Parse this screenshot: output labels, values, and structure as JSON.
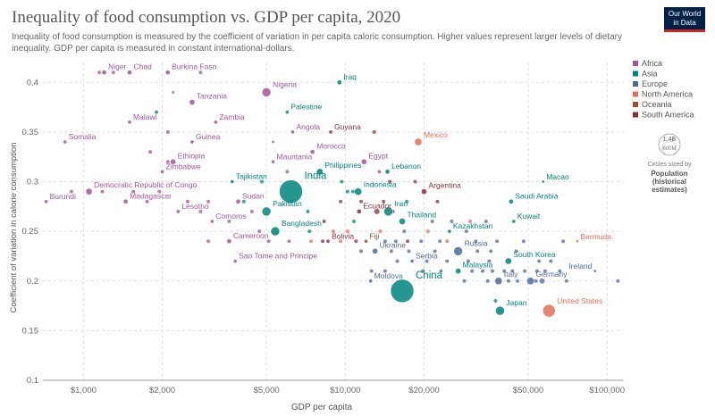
{
  "header": {
    "title": "Inequality of food consumption vs. GDP per capita, 2020",
    "subtitle": "Inequality of food consumption is measured by the coefficient of variation in per capita caloric consumption. Higher values represent larger levels of dietary inequality. GDP per capita is measured in constant international-dollars.",
    "logo_line1": "Our World",
    "logo_line2": "in Data"
  },
  "colors": {
    "Africa": "#a2559c",
    "Asia": "#00847e",
    "Europe": "#4c6a9c",
    "North America": "#e56e5a",
    "Oceania": "#9a5129",
    "South America": "#883039"
  },
  "size_legend": {
    "value_label": "1.4B",
    "value_label2": "600M",
    "note": "Circles sized by",
    "title": "Population",
    "title2": "(historical",
    "title3": "estimates)"
  },
  "chart_data": {
    "type": "scatter",
    "xlabel": "GDP per capita",
    "ylabel": "Coefficient of variation in calorie consumption",
    "xscale": "log",
    "xlim": [
      700,
      115000
    ],
    "ylim": [
      0.1,
      0.42
    ],
    "xticks": [
      1000,
      2000,
      5000,
      10000,
      20000,
      50000,
      100000
    ],
    "xtick_labels": [
      "$1,000",
      "$2,000",
      "$5,000",
      "$10,000",
      "$20,000",
      "$50,000",
      "$100,000"
    ],
    "yticks": [
      0.1,
      0.15,
      0.2,
      0.25,
      0.3,
      0.35,
      0.4
    ],
    "ytick_labels": [
      "0.1",
      "0.15",
      "0.2",
      "0.25",
      "0.3",
      "0.35",
      "0.4"
    ],
    "grid": true,
    "legend_position": "right",
    "legend": [
      "Africa",
      "Asia",
      "Europe",
      "North America",
      "Oceania",
      "South America"
    ],
    "points": [
      {
        "label": "Niger",
        "x": 1200,
        "y": 0.41,
        "region": "Africa",
        "r": 2.5
      },
      {
        "label": "Chad",
        "x": 1500,
        "y": 0.41,
        "region": "Africa",
        "r": 2.5
      },
      {
        "label": "Burkina Faso",
        "x": 2100,
        "y": 0.41,
        "region": "Africa",
        "r": 2.5
      },
      {
        "label": "Nigeria",
        "x": 5000,
        "y": 0.39,
        "region": "Africa",
        "r": 5
      },
      {
        "label": "Iraq",
        "x": 9500,
        "y": 0.4,
        "region": "Asia",
        "r": 2.5
      },
      {
        "label": "Tanzania",
        "x": 2600,
        "y": 0.38,
        "region": "Africa",
        "r": 3
      },
      {
        "label": "Palestine",
        "x": 6000,
        "y": 0.37,
        "region": "Asia",
        "r": 2
      },
      {
        "label": "Malawi",
        "x": 1500,
        "y": 0.36,
        "region": "Africa",
        "r": 2
      },
      {
        "label": "Zambia",
        "x": 3200,
        "y": 0.36,
        "region": "Africa",
        "r": 2
      },
      {
        "label": "Angola",
        "x": 6300,
        "y": 0.35,
        "region": "Africa",
        "r": 2
      },
      {
        "label": "Guyana",
        "x": 8800,
        "y": 0.35,
        "region": "South America",
        "r": 2
      },
      {
        "label": "Somalia",
        "x": 850,
        "y": 0.34,
        "region": "Africa",
        "r": 2
      },
      {
        "label": "Guinea",
        "x": 2600,
        "y": 0.34,
        "region": "Africa",
        "r": 2
      },
      {
        "label": "Mexico",
        "x": 19000,
        "y": 0.34,
        "region": "North America",
        "r": 4
      },
      {
        "label": "Morocco",
        "x": 7500,
        "y": 0.33,
        "region": "Africa",
        "r": 2.5
      },
      {
        "label": "Ethiopia",
        "x": 2200,
        "y": 0.32,
        "region": "Africa",
        "r": 3
      },
      {
        "label": "Mauritania",
        "x": 5300,
        "y": 0.32,
        "region": "Africa",
        "r": 2
      },
      {
        "label": "Egypt",
        "x": 11800,
        "y": 0.32,
        "region": "Africa",
        "r": 3
      },
      {
        "label": "Zimbabwe",
        "x": 2000,
        "y": 0.31,
        "region": "Africa",
        "r": 2
      },
      {
        "label": "Philippines",
        "x": 8000,
        "y": 0.31,
        "region": "Asia",
        "r": 3.5
      },
      {
        "label": "Lebanon",
        "x": 14500,
        "y": 0.31,
        "region": "Asia",
        "r": 2.5
      },
      {
        "label": "Tajikistan",
        "x": 3700,
        "y": 0.3,
        "region": "Asia",
        "r": 2
      },
      {
        "label": "India",
        "x": 6200,
        "y": 0.29,
        "region": "Asia",
        "r": 13
      },
      {
        "label": "Macao",
        "x": 57000,
        "y": 0.3,
        "region": "Asia",
        "r": 1.5
      },
      {
        "label": "Democratic Republic of Congo",
        "x": 1050,
        "y": 0.29,
        "region": "Africa",
        "r": 3.5
      },
      {
        "label": "Argentina",
        "x": 20000,
        "y": 0.29,
        "region": "South America",
        "r": 3
      },
      {
        "label": "Indonesia",
        "x": 11200,
        "y": 0.29,
        "region": "Asia",
        "r": 4
      },
      {
        "label": "Burundi",
        "x": 720,
        "y": 0.28,
        "region": "Africa",
        "r": 2
      },
      {
        "label": "Madagascar",
        "x": 1450,
        "y": 0.28,
        "region": "Africa",
        "r": 2.5
      },
      {
        "label": "Sudan",
        "x": 3900,
        "y": 0.28,
        "region": "Africa",
        "r": 2.5
      },
      {
        "label": "Pakistan",
        "x": 5000,
        "y": 0.27,
        "region": "Asia",
        "r": 5
      },
      {
        "label": "Saudi Arabia",
        "x": 43000,
        "y": 0.28,
        "region": "Asia",
        "r": 2.5
      },
      {
        "label": "Lesotho",
        "x": 2300,
        "y": 0.27,
        "region": "Africa",
        "r": 2
      },
      {
        "label": "Ecuador",
        "x": 11300,
        "y": 0.27,
        "region": "South America",
        "r": 2.5
      },
      {
        "label": "Iran",
        "x": 14600,
        "y": 0.27,
        "region": "Asia",
        "r": 5
      },
      {
        "label": "Comoros",
        "x": 3100,
        "y": 0.26,
        "region": "Africa",
        "r": 2
      },
      {
        "label": "Bangladesh",
        "x": 5400,
        "y": 0.25,
        "region": "Asia",
        "r": 5
      },
      {
        "label": "Thailand",
        "x": 16500,
        "y": 0.26,
        "region": "Asia",
        "r": 3.5
      },
      {
        "label": "Kuwait",
        "x": 44000,
        "y": 0.26,
        "region": "Asia",
        "r": 2
      },
      {
        "label": "Kazakhstan",
        "x": 25000,
        "y": 0.25,
        "region": "Asia",
        "r": 2
      },
      {
        "label": "Cameroon",
        "x": 3600,
        "y": 0.24,
        "region": "Africa",
        "r": 2.5
      },
      {
        "label": "Bolivia",
        "x": 8600,
        "y": 0.24,
        "region": "South America",
        "r": 2
      },
      {
        "label": "Fiji",
        "x": 12000,
        "y": 0.24,
        "region": "Oceania",
        "r": 2
      },
      {
        "label": "Ukraine",
        "x": 13000,
        "y": 0.23,
        "region": "Europe",
        "r": 3
      },
      {
        "label": "Russia",
        "x": 27000,
        "y": 0.23,
        "region": "Europe",
        "r": 5
      },
      {
        "label": "Bermuda",
        "x": 77000,
        "y": 0.24,
        "region": "North America",
        "r": 1.5
      },
      {
        "label": "Sao Tome and Principe",
        "x": 3800,
        "y": 0.22,
        "region": "Africa",
        "r": 2
      },
      {
        "label": "Serbia",
        "x": 18000,
        "y": 0.22,
        "region": "Europe",
        "r": 2
      },
      {
        "label": "South Korea",
        "x": 42000,
        "y": 0.22,
        "region": "Asia",
        "r": 3.5
      },
      {
        "label": "Malaysia",
        "x": 27000,
        "y": 0.21,
        "region": "Asia",
        "r": 3
      },
      {
        "label": "Moldova",
        "x": 12500,
        "y": 0.2,
        "region": "Europe",
        "r": 2
      },
      {
        "label": "China",
        "x": 16500,
        "y": 0.19,
        "region": "Asia",
        "r": 13
      },
      {
        "label": "Italy",
        "x": 38500,
        "y": 0.2,
        "region": "Europe",
        "r": 4
      },
      {
        "label": "Germany",
        "x": 51000,
        "y": 0.2,
        "region": "Europe",
        "r": 4
      },
      {
        "label": "Ireland",
        "x": 90000,
        "y": 0.21,
        "region": "Europe",
        "r": 1.5
      },
      {
        "label": "Japan",
        "x": 39000,
        "y": 0.17,
        "region": "Asia",
        "r": 5
      },
      {
        "label": "United States",
        "x": 60000,
        "y": 0.17,
        "region": "North America",
        "r": 7
      }
    ],
    "extra_points": [
      {
        "x": 1150,
        "y": 0.41,
        "region": "Africa",
        "r": 2
      },
      {
        "x": 1300,
        "y": 0.41,
        "region": "Africa",
        "r": 2
      },
      {
        "x": 2800,
        "y": 0.41,
        "region": "Africa",
        "r": 2
      },
      {
        "x": 2200,
        "y": 0.39,
        "region": "Africa",
        "r": 1.5
      },
      {
        "x": 1900,
        "y": 0.37,
        "region": "Asia",
        "r": 2
      },
      {
        "x": 2100,
        "y": 0.35,
        "region": "Africa",
        "r": 2
      },
      {
        "x": 1800,
        "y": 0.33,
        "region": "Africa",
        "r": 2
      },
      {
        "x": 5300,
        "y": 0.34,
        "region": "Africa",
        "r": 1.5
      },
      {
        "x": 12900,
        "y": 0.35,
        "region": "South America",
        "r": 2
      },
      {
        "x": 13500,
        "y": 0.31,
        "region": "Africa",
        "r": 2
      },
      {
        "x": 2100,
        "y": 0.32,
        "region": "Africa",
        "r": 2
      },
      {
        "x": 6000,
        "y": 0.31,
        "region": "Africa",
        "r": 2
      },
      {
        "x": 4800,
        "y": 0.3,
        "region": "Asia",
        "r": 2
      },
      {
        "x": 9700,
        "y": 0.3,
        "region": "Asia",
        "r": 2
      },
      {
        "x": 14800,
        "y": 0.3,
        "region": "South America",
        "r": 2
      },
      {
        "x": 18500,
        "y": 0.3,
        "region": "South America",
        "r": 2
      },
      {
        "x": 900,
        "y": 0.29,
        "region": "Africa",
        "r": 2
      },
      {
        "x": 1180,
        "y": 0.29,
        "region": "Africa",
        "r": 2
      },
      {
        "x": 1550,
        "y": 0.29,
        "region": "Africa",
        "r": 2
      },
      {
        "x": 1950,
        "y": 0.29,
        "region": "Africa",
        "r": 2
      },
      {
        "x": 10200,
        "y": 0.29,
        "region": "Asia",
        "r": 2
      },
      {
        "x": 10700,
        "y": 0.29,
        "region": "Asia",
        "r": 2
      },
      {
        "x": 1750,
        "y": 0.28,
        "region": "Africa",
        "r": 2
      },
      {
        "x": 2500,
        "y": 0.28,
        "region": "Africa",
        "r": 2
      },
      {
        "x": 3000,
        "y": 0.28,
        "region": "Africa",
        "r": 2
      },
      {
        "x": 4100,
        "y": 0.28,
        "region": "Asia",
        "r": 2
      },
      {
        "x": 6200,
        "y": 0.28,
        "region": "Asia",
        "r": 2
      },
      {
        "x": 9600,
        "y": 0.28,
        "region": "South America",
        "r": 2
      },
      {
        "x": 11500,
        "y": 0.28,
        "region": "South America",
        "r": 2
      },
      {
        "x": 14000,
        "y": 0.28,
        "region": "South America",
        "r": 2
      },
      {
        "x": 17200,
        "y": 0.28,
        "region": "Asia",
        "r": 2
      },
      {
        "x": 22500,
        "y": 0.28,
        "region": "South America",
        "r": 2
      },
      {
        "x": 2800,
        "y": 0.27,
        "region": "Africa",
        "r": 2
      },
      {
        "x": 4400,
        "y": 0.27,
        "region": "Africa",
        "r": 2
      },
      {
        "x": 7200,
        "y": 0.27,
        "region": "Asia",
        "r": 2
      },
      {
        "x": 13200,
        "y": 0.27,
        "region": "South America",
        "r": 3
      },
      {
        "x": 15200,
        "y": 0.27,
        "region": "South America",
        "r": 2
      },
      {
        "x": 3600,
        "y": 0.26,
        "region": "Africa",
        "r": 2
      },
      {
        "x": 8300,
        "y": 0.26,
        "region": "South America",
        "r": 2
      },
      {
        "x": 10800,
        "y": 0.26,
        "region": "Asia",
        "r": 2
      },
      {
        "x": 21500,
        "y": 0.26,
        "region": "Europe",
        "r": 2
      },
      {
        "x": 25500,
        "y": 0.26,
        "region": "Europe",
        "r": 2
      },
      {
        "x": 30000,
        "y": 0.26,
        "region": "North America",
        "r": 2
      },
      {
        "x": 34500,
        "y": 0.26,
        "region": "Europe",
        "r": 2
      },
      {
        "x": 4700,
        "y": 0.25,
        "region": "Africa",
        "r": 2
      },
      {
        "x": 7300,
        "y": 0.25,
        "region": "Asia",
        "r": 2
      },
      {
        "x": 9000,
        "y": 0.25,
        "region": "North America",
        "r": 2
      },
      {
        "x": 10200,
        "y": 0.25,
        "region": "North America",
        "r": 2
      },
      {
        "x": 13600,
        "y": 0.25,
        "region": "North America",
        "r": 2
      },
      {
        "x": 16800,
        "y": 0.25,
        "region": "Europe",
        "r": 2
      },
      {
        "x": 20700,
        "y": 0.25,
        "region": "North America",
        "r": 2
      },
      {
        "x": 29000,
        "y": 0.25,
        "region": "Europe",
        "r": 2
      },
      {
        "x": 3000,
        "y": 0.24,
        "region": "Africa",
        "r": 2
      },
      {
        "x": 5100,
        "y": 0.24,
        "region": "Africa",
        "r": 2
      },
      {
        "x": 6100,
        "y": 0.24,
        "region": "Africa",
        "r": 2
      },
      {
        "x": 7400,
        "y": 0.24,
        "region": "North America",
        "r": 2
      },
      {
        "x": 8200,
        "y": 0.24,
        "region": "South America",
        "r": 2
      },
      {
        "x": 9600,
        "y": 0.24,
        "region": "North America",
        "r": 2
      },
      {
        "x": 11000,
        "y": 0.24,
        "region": "South America",
        "r": 2
      },
      {
        "x": 14200,
        "y": 0.24,
        "region": "Europe",
        "r": 2
      },
      {
        "x": 15600,
        "y": 0.24,
        "region": "Europe",
        "r": 2
      },
      {
        "x": 17300,
        "y": 0.24,
        "region": "South America",
        "r": 2
      },
      {
        "x": 19500,
        "y": 0.24,
        "region": "Europe",
        "r": 2
      },
      {
        "x": 23000,
        "y": 0.24,
        "region": "Europe",
        "r": 2
      },
      {
        "x": 24500,
        "y": 0.24,
        "region": "North America",
        "r": 2
      },
      {
        "x": 31500,
        "y": 0.24,
        "region": "Europe",
        "r": 2
      },
      {
        "x": 38000,
        "y": 0.24,
        "region": "Europe",
        "r": 2
      },
      {
        "x": 48000,
        "y": 0.24,
        "region": "Europe",
        "r": 2
      },
      {
        "x": 68000,
        "y": 0.24,
        "region": "Europe",
        "r": 2
      },
      {
        "x": 11500,
        "y": 0.23,
        "region": "Europe",
        "r": 2
      },
      {
        "x": 15000,
        "y": 0.23,
        "region": "Europe",
        "r": 2
      },
      {
        "x": 17500,
        "y": 0.23,
        "region": "Europe",
        "r": 2
      },
      {
        "x": 22000,
        "y": 0.23,
        "region": "Europe",
        "r": 2
      },
      {
        "x": 32000,
        "y": 0.23,
        "region": "Europe",
        "r": 2
      },
      {
        "x": 36000,
        "y": 0.23,
        "region": "Europe",
        "r": 2
      },
      {
        "x": 45000,
        "y": 0.23,
        "region": "Europe",
        "r": 2
      },
      {
        "x": 15800,
        "y": 0.22,
        "region": "Europe",
        "r": 2
      },
      {
        "x": 20500,
        "y": 0.22,
        "region": "Europe",
        "r": 2
      },
      {
        "x": 24500,
        "y": 0.22,
        "region": "Europe",
        "r": 2
      },
      {
        "x": 29500,
        "y": 0.22,
        "region": "Europe",
        "r": 2
      },
      {
        "x": 35500,
        "y": 0.22,
        "region": "Europe",
        "r": 2
      },
      {
        "x": 55000,
        "y": 0.22,
        "region": "Europe",
        "r": 2
      },
      {
        "x": 61000,
        "y": 0.22,
        "region": "Europe",
        "r": 2
      },
      {
        "x": 12600,
        "y": 0.21,
        "region": "Europe",
        "r": 2
      },
      {
        "x": 14200,
        "y": 0.21,
        "region": "Europe",
        "r": 2
      },
      {
        "x": 19800,
        "y": 0.21,
        "region": "Europe",
        "r": 2
      },
      {
        "x": 23200,
        "y": 0.21,
        "region": "Europe",
        "r": 2
      },
      {
        "x": 30500,
        "y": 0.21,
        "region": "Europe",
        "r": 2
      },
      {
        "x": 33500,
        "y": 0.21,
        "region": "Europe",
        "r": 2
      },
      {
        "x": 36500,
        "y": 0.21,
        "region": "Europe",
        "r": 2
      },
      {
        "x": 40500,
        "y": 0.21,
        "region": "Europe",
        "r": 2
      },
      {
        "x": 43500,
        "y": 0.21,
        "region": "Europe",
        "r": 2
      },
      {
        "x": 48500,
        "y": 0.21,
        "region": "Europe",
        "r": 2
      },
      {
        "x": 54000,
        "y": 0.21,
        "region": "Europe",
        "r": 2
      },
      {
        "x": 58000,
        "y": 0.21,
        "region": "Europe",
        "r": 2
      },
      {
        "x": 66000,
        "y": 0.21,
        "region": "Europe",
        "r": 2
      },
      {
        "x": 28500,
        "y": 0.2,
        "region": "Europe",
        "r": 2
      },
      {
        "x": 35000,
        "y": 0.2,
        "region": "Europe",
        "r": 2
      },
      {
        "x": 42000,
        "y": 0.2,
        "region": "Europe",
        "r": 2
      },
      {
        "x": 45500,
        "y": 0.2,
        "region": "Europe",
        "r": 2
      },
      {
        "x": 53500,
        "y": 0.2,
        "region": "Europe",
        "r": 2
      },
      {
        "x": 56500,
        "y": 0.2,
        "region": "Europe",
        "r": 3
      },
      {
        "x": 70000,
        "y": 0.2,
        "region": "Europe",
        "r": 2
      },
      {
        "x": 110000,
        "y": 0.2,
        "region": "Europe",
        "r": 2
      },
      {
        "x": 37500,
        "y": 0.18,
        "region": "Asia",
        "r": 2
      }
    ]
  }
}
